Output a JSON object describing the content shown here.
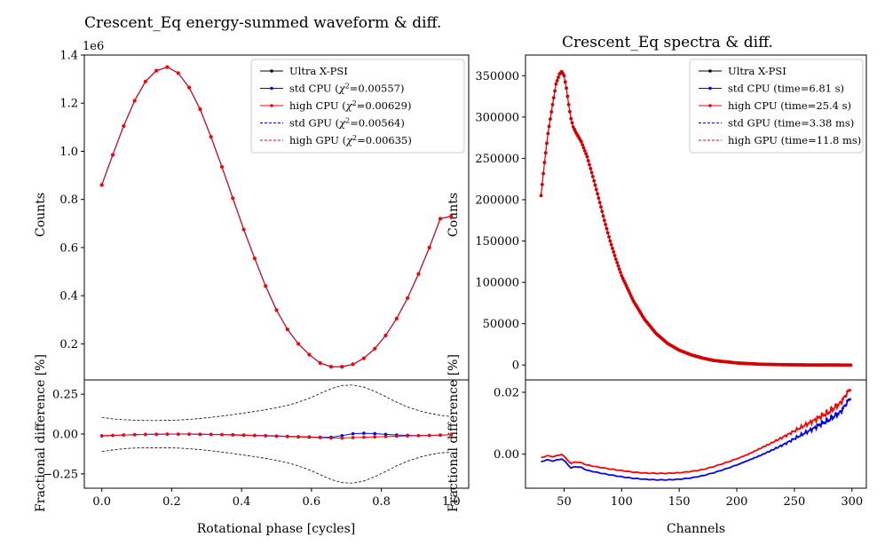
{
  "chart_data": [
    {
      "type": "line",
      "id": "waveform",
      "title": "Crescent_Eq energy-summed waveform & diff.",
      "top": {
        "ylabel": "Counts",
        "ylim": [
          0.05,
          1.4
        ],
        "y_offset_label": "1e6",
        "yticks": [
          0.2,
          0.4,
          0.6,
          0.8,
          1.0,
          1.2,
          1.4
        ],
        "ytick_labels": [
          "0.2",
          "0.4",
          "0.6",
          "0.8",
          "1.0",
          "1.2",
          "1.4"
        ],
        "x": [
          0.0,
          0.0313,
          0.0625,
          0.0938,
          0.125,
          0.1563,
          0.1875,
          0.2188,
          0.25,
          0.2813,
          0.3125,
          0.3438,
          0.375,
          0.4063,
          0.4375,
          0.4688,
          0.5,
          0.5313,
          0.5625,
          0.5938,
          0.625,
          0.6563,
          0.6875,
          0.7188,
          0.75,
          0.7813,
          0.8125,
          0.8438,
          0.875,
          0.9063,
          0.9375,
          0.9688,
          1.0
        ],
        "values": [
          0.86,
          0.985,
          1.105,
          1.21,
          1.29,
          1.335,
          1.35,
          1.325,
          1.265,
          1.175,
          1.06,
          0.935,
          0.805,
          0.675,
          0.555,
          0.44,
          0.34,
          0.26,
          0.2,
          0.155,
          0.12,
          0.105,
          0.105,
          0.115,
          0.14,
          0.18,
          0.235,
          0.305,
          0.39,
          0.49,
          0.6,
          0.72,
          0.73
        ],
        "series": [
          {
            "name": "Ultra X-PSI",
            "color": "#000000",
            "style": "solid",
            "marker": true
          },
          {
            "name": "std CPU (χ²=0.00557)",
            "color": "#0000ff",
            "style": "solid",
            "marker": true
          },
          {
            "name": "high CPU (χ²=0.00629)",
            "color": "#ff0000",
            "style": "solid",
            "marker": true
          },
          {
            "name": "std GPU (χ²=0.00564)",
            "color": "#0000ff",
            "style": "dashed",
            "marker": false
          },
          {
            "name": "high GPU (χ²=0.00635)",
            "color": "#ff0000",
            "style": "dashed",
            "marker": false
          }
        ],
        "legend": [
          {
            "pre": "Ultra X-PSI",
            "sup": "",
            "post": ""
          },
          {
            "pre": "std CPU (",
            "sup": "2",
            "post": "=0.00557)"
          },
          {
            "pre": "high CPU (",
            "sup": "2",
            "post": "=0.00629)"
          },
          {
            "pre": "std GPU (",
            "sup": "2",
            "post": "=0.00564)"
          },
          {
            "pre": "high GPU (",
            "sup": "2",
            "post": "=0.00635)"
          }
        ],
        "legend_loc": "top-right"
      },
      "bottom": {
        "ylabel": "Fractional difference [%]",
        "xlabel": "Rotational phase [cycles]",
        "ylim": [
          -0.34,
          0.34
        ],
        "yticks": [
          -0.25,
          0.0,
          0.25
        ],
        "ytick_labels": [
          "−0.25",
          "0.00",
          "0.25"
        ],
        "xlim": [
          -0.05,
          1.05
        ],
        "xticks": [
          0.0,
          0.2,
          0.4,
          0.6,
          0.8,
          1.0
        ],
        "xtick_labels": [
          "0.0",
          "0.2",
          "0.4",
          "0.6",
          "0.8",
          "1.0"
        ],
        "envelope_upper": [
          0.105,
          0.095,
          0.09,
          0.087,
          0.085,
          0.085,
          0.086,
          0.088,
          0.092,
          0.098,
          0.105,
          0.113,
          0.122,
          0.132,
          0.142,
          0.153,
          0.165,
          0.18,
          0.2,
          0.225,
          0.255,
          0.285,
          0.305,
          0.308,
          0.295,
          0.268,
          0.235,
          0.2,
          0.17,
          0.148,
          0.13,
          0.118,
          0.11
        ],
        "envelope_lower": [
          -0.11,
          -0.1,
          -0.092,
          -0.088,
          -0.086,
          -0.086,
          -0.086,
          -0.088,
          -0.092,
          -0.098,
          -0.105,
          -0.113,
          -0.122,
          -0.132,
          -0.142,
          -0.153,
          -0.165,
          -0.18,
          -0.2,
          -0.225,
          -0.255,
          -0.285,
          -0.305,
          -0.308,
          -0.295,
          -0.268,
          -0.235,
          -0.2,
          -0.17,
          -0.148,
          -0.13,
          -0.118,
          -0.115
        ],
        "std_diff": [
          -0.012,
          -0.009,
          -0.006,
          -0.004,
          -0.002,
          -0.001,
          0.0,
          0.0,
          0.0,
          -0.001,
          -0.002,
          -0.003,
          -0.004,
          -0.006,
          -0.008,
          -0.01,
          -0.012,
          -0.014,
          -0.016,
          -0.018,
          -0.02,
          -0.02,
          -0.01,
          0.002,
          0.005,
          0.003,
          -0.002,
          -0.006,
          -0.008,
          -0.01,
          -0.009,
          -0.007,
          -0.005
        ],
        "high_diff": [
          -0.01,
          -0.008,
          -0.006,
          -0.004,
          -0.003,
          -0.002,
          -0.001,
          -0.001,
          -0.001,
          -0.002,
          -0.003,
          -0.004,
          -0.006,
          -0.008,
          -0.01,
          -0.012,
          -0.014,
          -0.016,
          -0.018,
          -0.02,
          -0.022,
          -0.025,
          -0.025,
          -0.022,
          -0.02,
          -0.018,
          -0.016,
          -0.014,
          -0.012,
          -0.01,
          -0.008,
          -0.006,
          -0.004
        ]
      }
    },
    {
      "type": "line",
      "id": "spectra",
      "title": "Crescent_Eq spectra & diff.",
      "top": {
        "ylabel": "Counts",
        "ylim": [
          -18000,
          375000
        ],
        "yticks": [
          0,
          50000,
          100000,
          150000,
          200000,
          250000,
          300000,
          350000
        ],
        "ytick_labels": [
          "0",
          "50000",
          "100000",
          "150000",
          "200000",
          "250000",
          "300000",
          "350000"
        ],
        "x_anchor": [
          30,
          33,
          36,
          40,
          43,
          46,
          48,
          50,
          52,
          54,
          56,
          58,
          60,
          65,
          70,
          75,
          80,
          85,
          90,
          95,
          100,
          110,
          120,
          130,
          140,
          150,
          160,
          170,
          180,
          200,
          220,
          240,
          260,
          280,
          299
        ],
        "y_anchor": [
          205000,
          245000,
          280000,
          315000,
          340000,
          352000,
          355000,
          350000,
          335000,
          315000,
          298000,
          288000,
          282000,
          270000,
          252000,
          228000,
          202000,
          175000,
          150000,
          128000,
          108000,
          78000,
          55000,
          38000,
          26000,
          18000,
          12500,
          8500,
          5500,
          2500,
          1000,
          400,
          150,
          50,
          0
        ],
        "series": [
          {
            "name": "Ultra X-PSI",
            "color": "#000000",
            "style": "solid",
            "marker": true
          },
          {
            "name": "std CPU (time=6.81 s)",
            "color": "#0000ff",
            "style": "solid",
            "marker": true
          },
          {
            "name": "high CPU (time=25.4 s)",
            "color": "#ff0000",
            "style": "solid",
            "marker": true
          },
          {
            "name": "std GPU (time=3.38 ms)",
            "color": "#0000ff",
            "style": "dashed",
            "marker": false
          },
          {
            "name": "high GPU (time=11.8 ms)",
            "color": "#ff0000",
            "style": "dashed",
            "marker": false
          }
        ],
        "legend_loc": "top-right"
      },
      "bottom": {
        "ylabel": "Fractional difference [%]",
        "xlabel": "Channels",
        "ylim": [
          -0.011,
          0.024
        ],
        "yticks": [
          0.0,
          0.02
        ],
        "ytick_labels": [
          "0.00",
          "0.02"
        ],
        "xlim": [
          16.5,
          312.5
        ],
        "xticks": [
          50,
          100,
          150,
          200,
          250,
          300
        ],
        "xtick_labels": [
          "50",
          "100",
          "150",
          "200",
          "250",
          "300"
        ],
        "std_anchor_x": [
          30,
          35,
          40,
          45,
          48,
          52,
          56,
          60,
          65,
          70,
          80,
          90,
          100,
          110,
          120,
          130,
          140,
          150,
          160,
          170,
          180,
          190,
          200,
          210,
          220,
          230,
          240,
          250,
          260,
          270,
          280,
          290,
          299
        ],
        "std_anchor_y": [
          -0.0025,
          -0.0018,
          -0.0022,
          -0.0018,
          -0.0015,
          -0.0028,
          -0.0045,
          -0.004,
          -0.0043,
          -0.0052,
          -0.006,
          -0.0067,
          -0.0073,
          -0.0078,
          -0.0081,
          -0.0083,
          -0.0083,
          -0.0081,
          -0.0077,
          -0.007,
          -0.006,
          -0.0048,
          -0.0035,
          -0.002,
          -0.0005,
          0.0012,
          0.003,
          0.005,
          0.007,
          0.009,
          0.011,
          0.0135,
          0.0185
        ],
        "high_anchor_x": [
          30,
          35,
          40,
          45,
          48,
          52,
          56,
          60,
          65,
          70,
          80,
          90,
          100,
          110,
          120,
          130,
          140,
          150,
          160,
          170,
          180,
          190,
          200,
          210,
          220,
          230,
          240,
          250,
          260,
          270,
          280,
          290,
          299
        ],
        "high_anchor_y": [
          -0.0012,
          -0.0005,
          -0.0008,
          -0.0004,
          0.0,
          -0.0015,
          -0.003,
          -0.0025,
          -0.0028,
          -0.0035,
          -0.0042,
          -0.0048,
          -0.0053,
          -0.0058,
          -0.0061,
          -0.0062,
          -0.0062,
          -0.006,
          -0.0056,
          -0.005,
          -0.004,
          -0.0028,
          -0.0015,
          0.0,
          0.0018,
          0.0036,
          0.0055,
          0.0075,
          0.0095,
          0.0115,
          0.0135,
          0.0165,
          0.0215
        ]
      }
    }
  ]
}
